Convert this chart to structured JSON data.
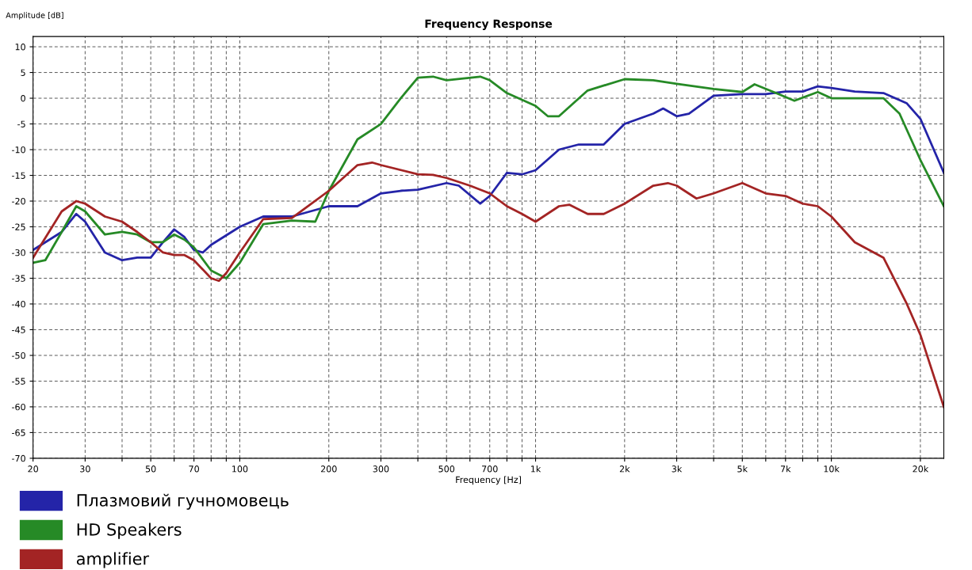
{
  "chart_data": {
    "type": "line",
    "title": "Frequency Response",
    "xlabel": "Frequency [Hz]",
    "ylabel": "Amplitude [dB]",
    "log": "x",
    "grid": true,
    "legend": "bottom",
    "line_style": "solid",
    "marker": "none",
    "xlim": [
      20,
      24000
    ],
    "ylim": [
      -70,
      12
    ],
    "xticks": [
      20,
      30,
      {
        "value": 40,
        "label": null
      },
      50,
      {
        "value": 60,
        "label": null
      },
      70,
      {
        "value": 80,
        "label": null
      },
      {
        "value": 90,
        "label": null
      },
      100,
      200,
      300,
      {
        "value": 400,
        "label": null
      },
      500,
      {
        "value": 600,
        "label": null
      },
      700,
      {
        "value": 800,
        "label": null
      },
      {
        "value": 900,
        "label": null
      },
      {
        "value": 1000,
        "label": "1k"
      },
      {
        "value": 2000,
        "label": "2k"
      },
      {
        "value": 3000,
        "label": "3k"
      },
      {
        "value": 4000,
        "label": null
      },
      {
        "value": 5000,
        "label": "5k"
      },
      {
        "value": 6000,
        "label": null
      },
      {
        "value": 7000,
        "label": "7k"
      },
      {
        "value": 8000,
        "label": null
      },
      {
        "value": 9000,
        "label": null
      },
      {
        "value": 10000,
        "label": "10k"
      },
      {
        "value": 20000,
        "label": "20k"
      }
    ],
    "yticks": [
      -70,
      -65,
      -60,
      -55,
      -50,
      -45,
      -40,
      -35,
      -30,
      -25,
      -20,
      -15,
      -10,
      -5,
      0,
      5,
      10
    ],
    "series": [
      {
        "name": "Плазмовий гучномовець",
        "color": "#2424a8",
        "x": [
          20,
          25,
          28,
          30,
          35,
          40,
          45,
          50,
          55,
          60,
          65,
          70,
          75,
          80,
          100,
          120,
          150,
          200,
          250,
          300,
          350,
          400,
          500,
          550,
          650,
          700,
          800,
          900,
          1000,
          1200,
          1400,
          1700,
          2000,
          2500,
          2700,
          3000,
          3300,
          4000,
          5000,
          6000,
          7000,
          8000,
          9000,
          10000,
          12000,
          15000,
          18000,
          20000,
          24000
        ],
        "values": [
          -29.5,
          -26,
          -22.5,
          -24,
          -30,
          -31.5,
          -31,
          -31,
          -28,
          -25.5,
          -27,
          -29.5,
          -30,
          -28.5,
          -25,
          -23,
          -23,
          -21,
          -21,
          -18.5,
          -18,
          -17.8,
          -16.5,
          -17,
          -20.5,
          -19,
          -14.5,
          -14.8,
          -14,
          -10,
          -9,
          -9,
          -5,
          -3,
          -2,
          -3.5,
          -3,
          0.5,
          0.8,
          0.8,
          1.3,
          1.3,
          2.3,
          2,
          1.3,
          1,
          -1,
          -4,
          -14.5
        ]
      },
      {
        "name": "HD Speakers",
        "color": "#268a26",
        "x": [
          20,
          22,
          25,
          28,
          30,
          35,
          40,
          45,
          50,
          55,
          60,
          65,
          70,
          80,
          90,
          100,
          120,
          150,
          180,
          200,
          250,
          300,
          350,
          400,
          450,
          500,
          650,
          700,
          800,
          1000,
          1100,
          1200,
          1500,
          2000,
          2500,
          3000,
          4000,
          5000,
          5500,
          6500,
          7500,
          9000,
          10000,
          12000,
          15000,
          17000,
          20000,
          24000
        ],
        "values": [
          -32,
          -31.5,
          -26,
          -21,
          -22,
          -26.5,
          -26,
          -26.5,
          -28,
          -28,
          -26.5,
          -27.5,
          -29,
          -33.5,
          -35,
          -32,
          -24.5,
          -23.8,
          -24,
          -18,
          -8,
          -5,
          0,
          4,
          4.2,
          3.5,
          4.2,
          3.5,
          1,
          -1.5,
          -3.5,
          -3.5,
          1.5,
          3.7,
          3.5,
          2.8,
          1.8,
          1.2,
          2.7,
          1,
          -0.5,
          1.2,
          0,
          0,
          0,
          -3,
          -12,
          -21
        ]
      },
      {
        "name": "amplifier",
        "color": "#a32424",
        "x": [
          20,
          25,
          28,
          30,
          35,
          40,
          45,
          50,
          55,
          60,
          65,
          70,
          80,
          85,
          90,
          100,
          120,
          150,
          200,
          250,
          280,
          300,
          400,
          450,
          500,
          600,
          700,
          800,
          900,
          1000,
          1200,
          1300,
          1500,
          1700,
          2000,
          2500,
          2800,
          3000,
          3500,
          4000,
          5000,
          6000,
          7000,
          8000,
          9000,
          10000,
          12000,
          15000,
          18000,
          20000,
          24000
        ],
        "values": [
          -31,
          -22,
          -20,
          -20.5,
          -23,
          -24,
          -26,
          -28,
          -30,
          -30.5,
          -30.5,
          -31.5,
          -35,
          -35.5,
          -34,
          -30,
          -23.5,
          -23.3,
          -18,
          -13,
          -12.5,
          -13,
          -14.8,
          -14.9,
          -15.5,
          -17,
          -18.5,
          -21,
          -22.5,
          -24,
          -21,
          -20.7,
          -22.5,
          -22.5,
          -20.5,
          -17,
          -16.5,
          -17,
          -19.5,
          -18.5,
          -16.5,
          -18.5,
          -19,
          -20.5,
          -21,
          -23,
          -28,
          -31,
          -40,
          -46,
          -60
        ]
      }
    ]
  }
}
